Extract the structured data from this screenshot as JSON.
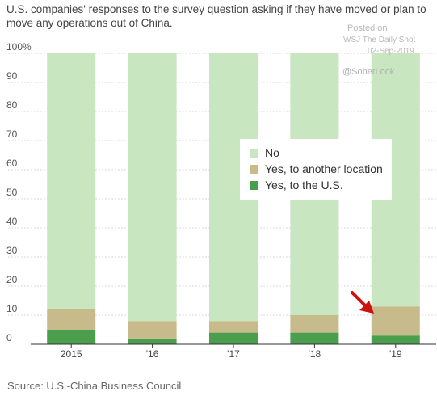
{
  "title": "U.S. companies' responses to the survey question asking if they have moved or plan to move any operations out of China.",
  "watermark": {
    "line1": "Posted on",
    "line2": "WSJ  The Daily Shot",
    "line3": "02-Sep-2019"
  },
  "handle": "@SoberLook",
  "source": "Source: U.S.-China Business Council",
  "colors": {
    "no": "#c8e6c0",
    "yes_other": "#c7bb8c",
    "yes_us": "#4a9e4d",
    "arrow": "#cc1111"
  },
  "chart_data": {
    "type": "bar",
    "stacked": true,
    "categories": [
      "2015",
      "'16",
      "'17",
      "'18",
      "'19"
    ],
    "series": [
      {
        "name": "Yes, to the U.S.",
        "values": [
          5,
          2,
          4,
          4,
          3
        ]
      },
      {
        "name": "Yes, to another location",
        "values": [
          7,
          6,
          4,
          6,
          10
        ]
      },
      {
        "name": "No",
        "values": [
          88,
          92,
          92,
          90,
          87
        ]
      }
    ],
    "ylim": [
      0,
      100
    ],
    "yticks": [
      "0",
      "10",
      "20",
      "30",
      "40",
      "50",
      "60",
      "70",
      "80",
      "90",
      "100%"
    ],
    "legend": [
      "No",
      "Yes, to another location",
      "Yes, to the U.S."
    ],
    "legend_position": "center-right",
    "annotation": "red arrow pointing at the '19 bar",
    "grid": true
  }
}
